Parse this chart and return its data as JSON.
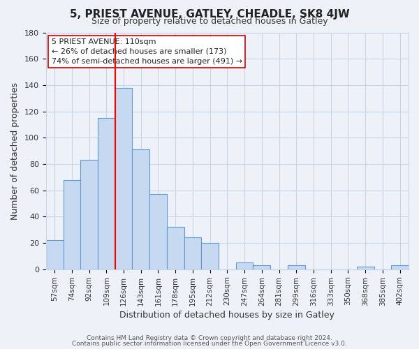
{
  "title": "5, PRIEST AVENUE, GATLEY, CHEADLE, SK8 4JW",
  "subtitle": "Size of property relative to detached houses in Gatley",
  "xlabel": "Distribution of detached houses by size in Gatley",
  "ylabel": "Number of detached properties",
  "bin_labels": [
    "57sqm",
    "74sqm",
    "92sqm",
    "109sqm",
    "126sqm",
    "143sqm",
    "161sqm",
    "178sqm",
    "195sqm",
    "212sqm",
    "230sqm",
    "247sqm",
    "264sqm",
    "281sqm",
    "299sqm",
    "316sqm",
    "333sqm",
    "350sqm",
    "368sqm",
    "385sqm",
    "402sqm"
  ],
  "bar_heights": [
    22,
    68,
    83,
    115,
    138,
    91,
    57,
    32,
    24,
    20,
    0,
    5,
    3,
    0,
    3,
    0,
    0,
    0,
    2,
    0,
    3
  ],
  "bar_color": "#c6d9f0",
  "bar_edge_color": "#5b9bd5",
  "red_line_x": 3.5,
  "ylim": [
    0,
    180
  ],
  "yticks": [
    0,
    20,
    40,
    60,
    80,
    100,
    120,
    140,
    160,
    180
  ],
  "annotation_title": "5 PRIEST AVENUE: 110sqm",
  "annotation_line1": "← 26% of detached houses are smaller (173)",
  "annotation_line2": "74% of semi-detached houses are larger (491) →",
  "footer_line1": "Contains HM Land Registry data © Crown copyright and database right 2024.",
  "footer_line2": "Contains public sector information licensed under the Open Government Licence v3.0.",
  "background_color": "#eef2f8",
  "plot_bg_color": "#eef2f8",
  "grid_color": "#c8d4e8",
  "title_fontsize": 11,
  "subtitle_fontsize": 9,
  "annotation_fontsize": 8,
  "xlabel_fontsize": 9,
  "ylabel_fontsize": 9,
  "tick_fontsize": 8,
  "xtick_fontsize": 7.5,
  "footer_fontsize": 6.5
}
